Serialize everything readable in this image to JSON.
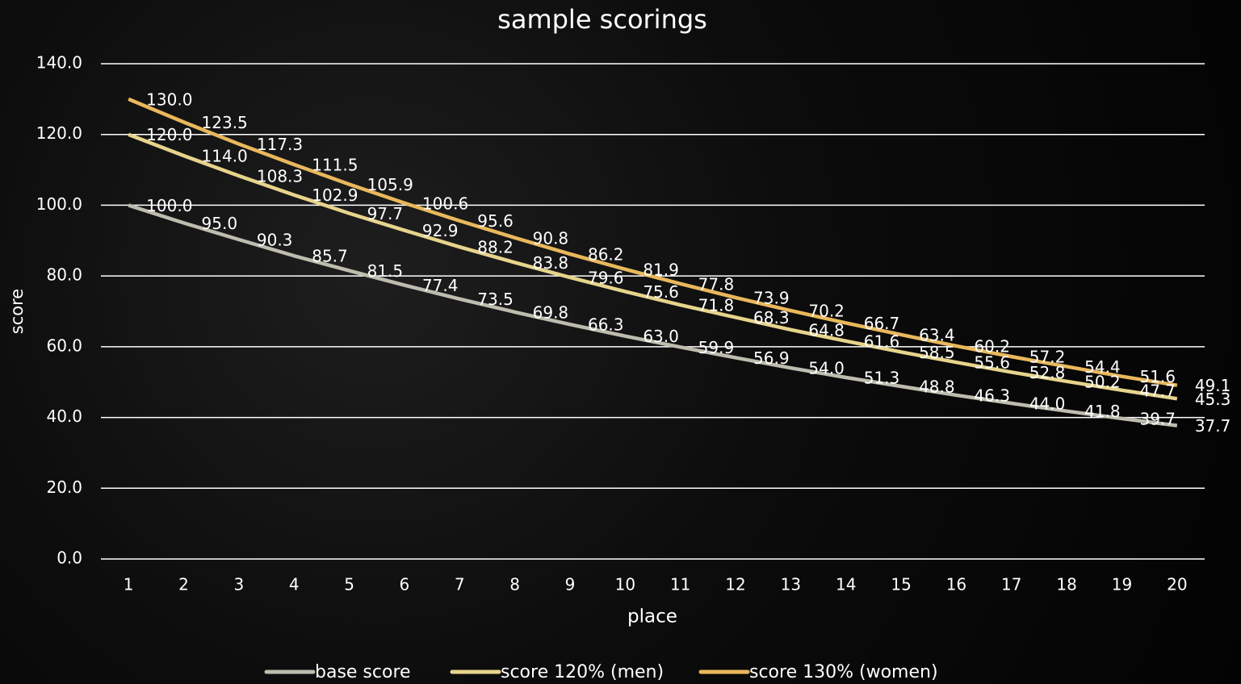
{
  "chart_data": {
    "type": "line",
    "title": "sample scorings",
    "x_label": "place",
    "y_label": "score",
    "categories": [
      "1",
      "2",
      "3",
      "4",
      "5",
      "6",
      "7",
      "8",
      "9",
      "10",
      "11",
      "12",
      "13",
      "14",
      "15",
      "16",
      "17",
      "18",
      "19",
      "20"
    ],
    "series": [
      {
        "name": "base score",
        "color": "#bdbcae",
        "values": [
          100.0,
          95.0,
          90.3,
          85.7,
          81.5,
          77.4,
          73.5,
          69.8,
          66.3,
          63.0,
          59.9,
          56.9,
          54.0,
          51.3,
          48.8,
          46.3,
          44.0,
          41.8,
          39.7,
          37.7
        ],
        "value_labels": [
          "100.0",
          "95.0",
          "90.3",
          "85.7",
          "81.5",
          "77.4",
          "73.5",
          "69.8",
          "66.3",
          "63.0",
          "59.9",
          "56.9",
          "54.0",
          "51.3",
          "48.8",
          "46.3",
          "44.0",
          "41.8",
          "39.7",
          "37.7"
        ]
      },
      {
        "name": "score 120% (men)",
        "color": "#e7d48c",
        "values": [
          120.0,
          114.0,
          108.3,
          102.9,
          97.7,
          92.9,
          88.2,
          83.8,
          79.6,
          75.6,
          71.8,
          68.3,
          64.8,
          61.6,
          58.5,
          55.6,
          52.8,
          50.2,
          47.7,
          45.3
        ],
        "value_labels": [
          "120.0",
          "114.0",
          "108.3",
          "102.9",
          "97.7",
          "92.9",
          "88.2",
          "83.8",
          "79.6",
          "75.6",
          "71.8",
          "68.3",
          "64.8",
          "61.6",
          "58.5",
          "55.6",
          "52.8",
          "50.2",
          "47.7",
          "45.3"
        ]
      },
      {
        "name": "score 130% (women)",
        "color": "#e9b85c",
        "values": [
          130.0,
          123.5,
          117.3,
          111.5,
          105.9,
          100.6,
          95.6,
          90.8,
          86.2,
          81.9,
          77.8,
          73.9,
          70.2,
          66.7,
          63.4,
          60.2,
          57.2,
          54.4,
          51.6,
          49.1
        ],
        "value_labels": [
          "130.0",
          "123.5",
          "117.3",
          "111.5",
          "105.9",
          "100.6",
          "95.6",
          "90.8",
          "86.2",
          "81.9",
          "77.8",
          "73.9",
          "70.2",
          "66.7",
          "63.4",
          "60.2",
          "57.2",
          "54.4",
          "51.6",
          "49.1"
        ]
      }
    ],
    "ylim": [
      0,
      140
    ],
    "yticks": [
      {
        "value": 0,
        "label": "0.0"
      },
      {
        "value": 20,
        "label": "20.0"
      },
      {
        "value": 40,
        "label": "40.0"
      },
      {
        "value": 60,
        "label": "60.0"
      },
      {
        "value": 80,
        "label": "80.0"
      },
      {
        "value": 100,
        "label": "100.0"
      },
      {
        "value": 120,
        "label": "120.0"
      },
      {
        "value": 140,
        "label": "140.0"
      }
    ],
    "grid": true,
    "legend": "bottom"
  }
}
